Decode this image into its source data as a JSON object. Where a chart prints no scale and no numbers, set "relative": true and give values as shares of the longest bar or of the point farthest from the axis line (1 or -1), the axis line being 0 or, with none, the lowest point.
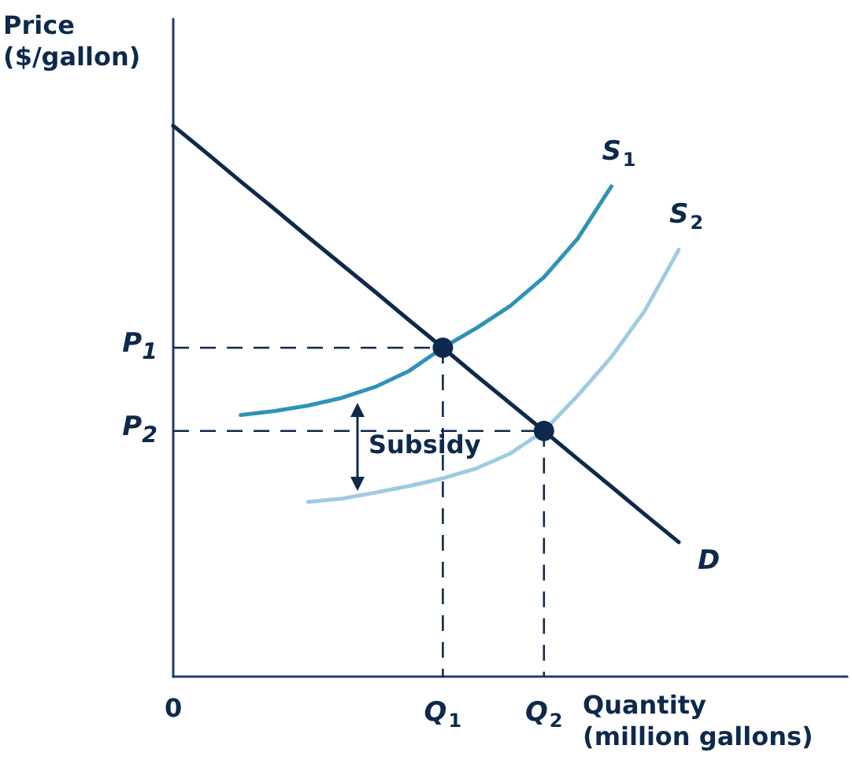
{
  "chart_data": {
    "type": "line",
    "relative": true,
    "xlabel": "Quantity\n(million gallons)",
    "ylabel": "Price\n($/gallon)",
    "marker": "none",
    "line_style": "solid",
    "categories": [
      "0",
      null,
      null,
      null,
      null,
      null,
      null,
      null,
      "Q$_{1}$",
      null,
      null,
      "Q$_{2}$",
      null,
      null,
      null,
      null,
      null,
      null,
      null,
      null,
      null
    ],
    "annotations": [
      "Subsidy"
    ],
    "ref_lines": [
      {
        "axis": "y",
        "value": 0.597,
        "label": "P$_{1}$",
        "color": "#0d2a4c",
        "line_style": "dashed"
      },
      {
        "axis": "y",
        "value": 0.446,
        "label": "P$_{2}$",
        "color": "#0d2a4c",
        "line_style": "dashed"
      }
    ],
    "series": [
      {
        "name": "D",
        "color": "#0d2a4c",
        "values": [
          1,
          0.95,
          0.899,
          0.849,
          0.798,
          0.748,
          0.698,
          0.647,
          0.597,
          0.546,
          0.496,
          0.446,
          0.395,
          0.345,
          0.294,
          0.244,
          null,
          null,
          null,
          null,
          null
        ]
      },
      {
        "name": "S$_{1}$",
        "color": "#2f93b6",
        "values": [
          null,
          null,
          0.475,
          0.482,
          0.492,
          0.506,
          0.526,
          0.555,
          0.597,
          0.633,
          0.673,
          0.725,
          0.795,
          0.89,
          null,
          null,
          null,
          null,
          null,
          null,
          null
        ]
      },
      {
        "name": "S$_{2}$",
        "color": "#9fcbe0",
        "values": [
          null,
          null,
          null,
          null,
          0.317,
          0.323,
          0.334,
          0.346,
          0.36,
          0.378,
          0.405,
          0.446,
          0.51,
          0.58,
          0.665,
          0.775,
          null,
          null,
          null,
          null,
          null
        ]
      },
      {
        "type": "scatter",
        "marker": "circle",
        "color": "#0d2a4c",
        "values": [
          null,
          null,
          null,
          null,
          null,
          null,
          null,
          null,
          0.597,
          null,
          null,
          0.446,
          null,
          null,
          null,
          null,
          null,
          null,
          null,
          null,
          null
        ]
      }
    ]
  }
}
